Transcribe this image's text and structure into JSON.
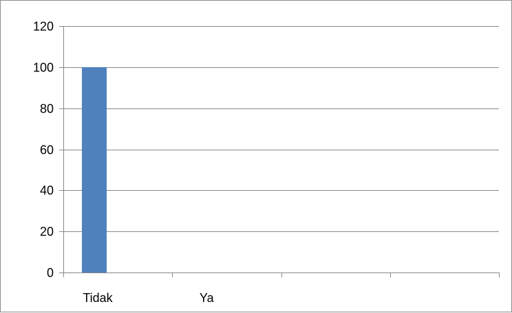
{
  "chart_data": {
    "type": "bar",
    "categories": [
      "Tidak",
      "Ya",
      "",
      ""
    ],
    "values": [
      100,
      0,
      0,
      0
    ],
    "title": "",
    "xlabel": "",
    "ylabel": "",
    "ylim": [
      0,
      120
    ],
    "yticks": [
      0,
      20,
      40,
      60,
      80,
      100,
      120
    ],
    "grid": true,
    "legend": "none",
    "bar_color": "#4f81bd"
  }
}
